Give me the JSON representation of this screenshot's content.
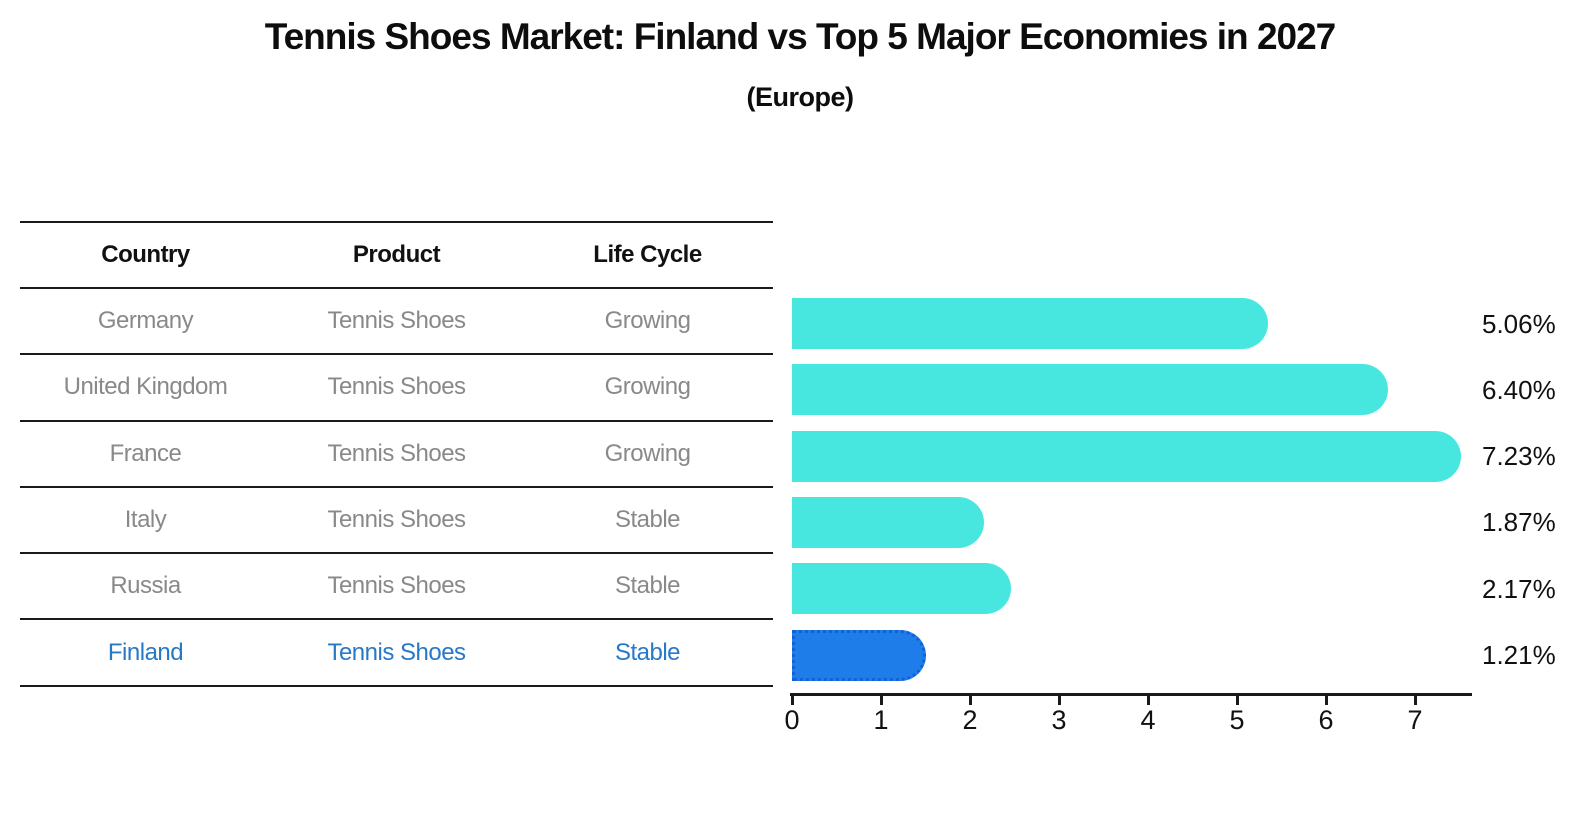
{
  "title": "Tennis Shoes Market: Finland vs Top 5 Major Economies in 2027",
  "subtitle": "(Europe)",
  "table": {
    "headers": [
      "Country",
      "Product",
      "Life Cycle"
    ],
    "rows": [
      {
        "country": "Germany",
        "product": "Tennis Shoes",
        "life_cycle": "Growing",
        "highlight": false
      },
      {
        "country": "United Kingdom",
        "product": "Tennis Shoes",
        "life_cycle": "Growing",
        "highlight": false
      },
      {
        "country": "France",
        "product": "Tennis Shoes",
        "life_cycle": "Growing",
        "highlight": false
      },
      {
        "country": "Italy",
        "product": "Tennis Shoes",
        "life_cycle": "Stable",
        "highlight": false
      },
      {
        "country": "Russia",
        "product": "Tennis Shoes",
        "life_cycle": "Stable",
        "highlight": false
      },
      {
        "country": "Finland",
        "product": "Tennis Shoes",
        "life_cycle": "Stable",
        "highlight": true
      }
    ]
  },
  "chart_data": {
    "type": "bar",
    "orientation": "horizontal",
    "title": "Tennis Shoes Market: Finland vs Top 5 Major Economies in 2027",
    "subtitle": "(Europe)",
    "categories": [
      "Germany",
      "United Kingdom",
      "France",
      "Italy",
      "Russia",
      "Finland"
    ],
    "values": [
      5.06,
      6.4,
      7.23,
      1.87,
      2.17,
      1.21
    ],
    "value_labels": [
      "5.06%",
      "6.40%",
      "7.23%",
      "1.87%",
      "2.17%",
      "1.21%"
    ],
    "x_ticks": [
      0,
      1,
      2,
      3,
      4,
      5,
      6,
      7
    ],
    "xlim": [
      0,
      7.6
    ],
    "grid": false,
    "legend": false,
    "highlight_index": 5,
    "bar_color": "#47e7e0",
    "highlight_bar_color": "#1e7de9",
    "highlight_text_color": "#2878c8"
  }
}
